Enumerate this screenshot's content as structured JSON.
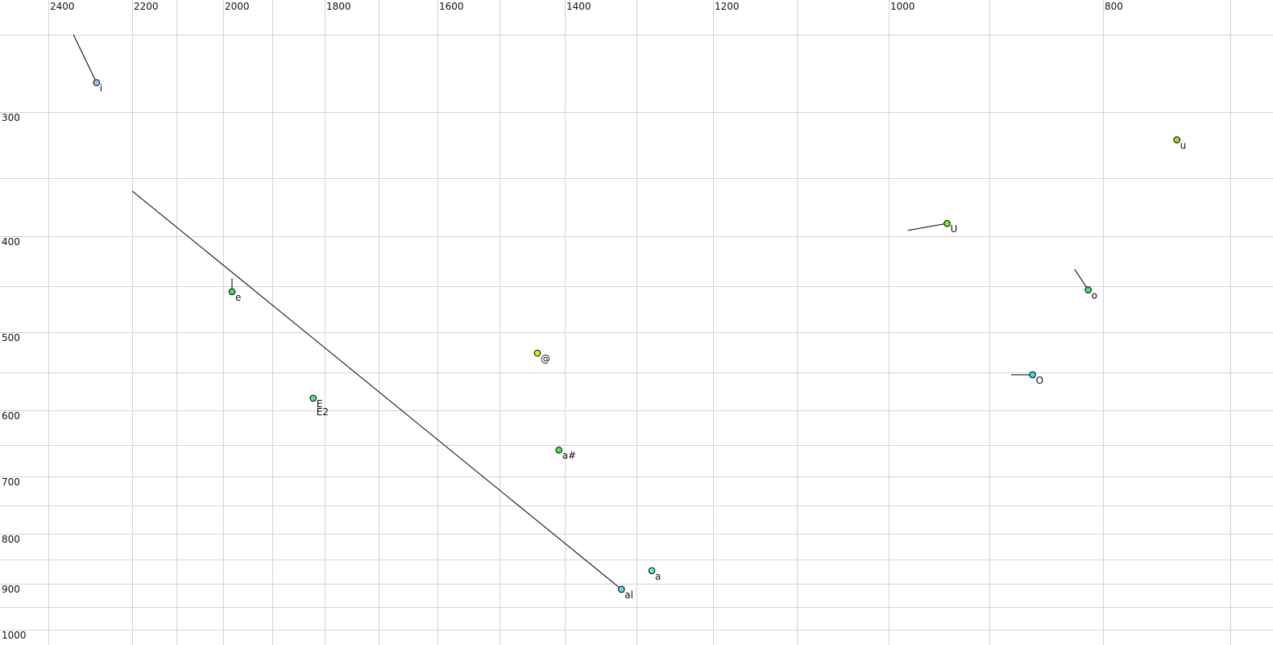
{
  "chart_data": {
    "type": "scatter",
    "title": "",
    "xlabel": "",
    "ylabel": "",
    "x_axis": {
      "reversed": true,
      "scale": "log",
      "range": [
        2400,
        700
      ],
      "ticks": [
        2400,
        2200,
        2000,
        1800,
        1600,
        1400,
        1200,
        1000,
        800
      ],
      "position": "top"
    },
    "y_axis": {
      "reversed": true,
      "scale": "log",
      "range": [
        250,
        1000
      ],
      "ticks": [
        300,
        400,
        500,
        600,
        700,
        800,
        900,
        1000
      ],
      "position": "left"
    },
    "grid": true,
    "points": [
      {
        "label": "i",
        "f2": 2285,
        "f1": 281,
        "color": "#9ec8f2",
        "trail": [
          2340,
          240
        ]
      },
      {
        "label": "e",
        "f2": 1982,
        "f1": 456,
        "color": "#48e070",
        "trail": [
          1982,
          442
        ]
      },
      {
        "label": "E",
        "f2": 1822,
        "f1": 584,
        "color": "#50e890"
      },
      {
        "label": "E2",
        "f2": 1822,
        "f1": 584,
        "color": "#50e890"
      },
      {
        "label": "@",
        "f2": 1442,
        "f1": 526,
        "color": "#dcf000"
      },
      {
        "label": "a#",
        "f2": 1409,
        "f1": 658,
        "color": "#50e848"
      },
      {
        "label": "al",
        "f2": 1321,
        "f1": 912,
        "color": "#58d8f0",
        "trail": [
          2200,
          361
        ]
      },
      {
        "label": "a",
        "f2": 1280,
        "f1": 873,
        "color": "#58f0c8"
      },
      {
        "label": "U",
        "f2": 942,
        "f1": 389,
        "color": "#80e820",
        "trail": [
          981,
          395
        ]
      },
      {
        "label": "u",
        "f2": 742,
        "f1": 321,
        "color": "#a0e020"
      },
      {
        "label": "o",
        "f2": 813,
        "f1": 454,
        "color": "#40e070",
        "trail": [
          825,
          433
        ]
      },
      {
        "label": "O",
        "f2": 862,
        "f1": 553,
        "color": "#40e0e0",
        "trail": [
          881,
          553
        ]
      }
    ]
  }
}
